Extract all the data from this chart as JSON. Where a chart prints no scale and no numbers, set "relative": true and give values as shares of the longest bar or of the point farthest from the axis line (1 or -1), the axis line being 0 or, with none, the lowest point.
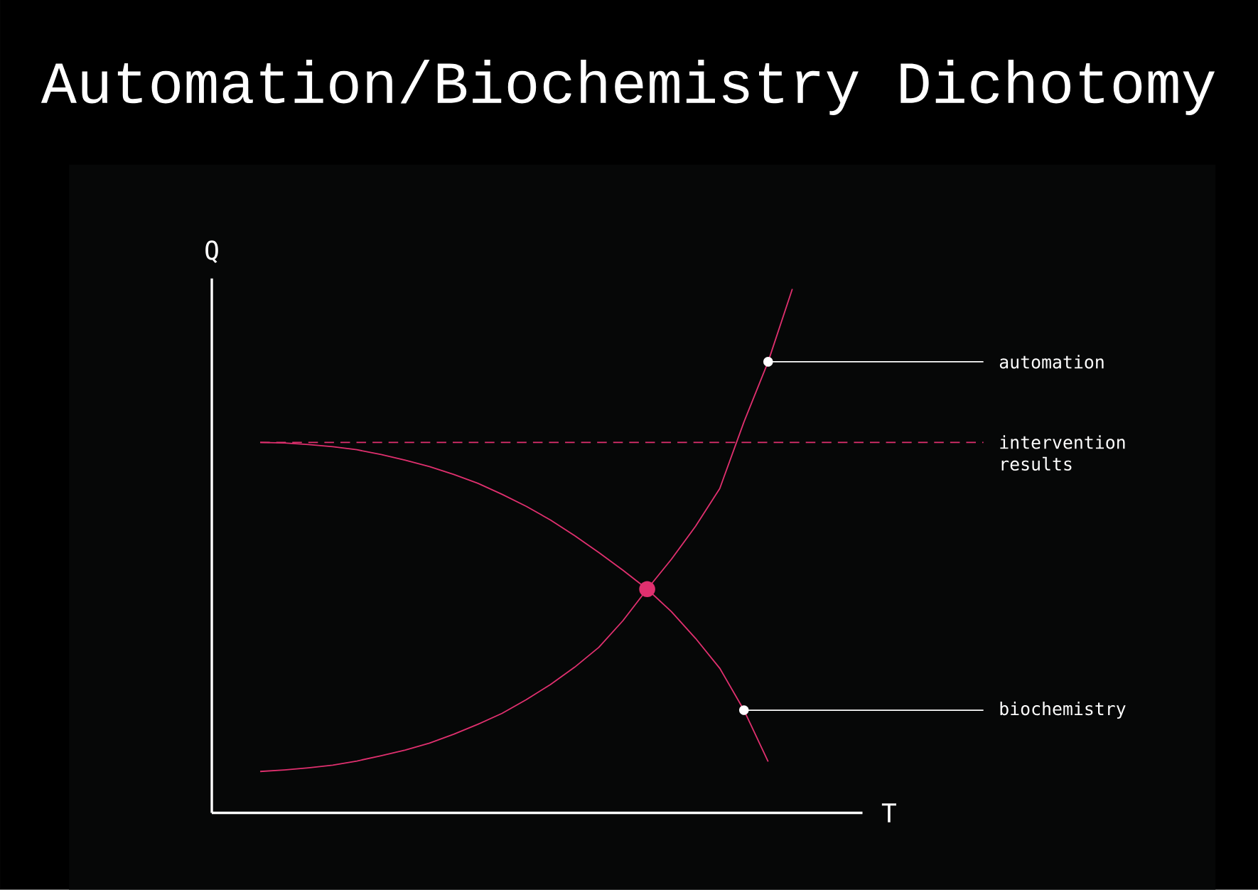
{
  "chart_data": {
    "type": "line",
    "title": "Automation/Biochemistry Dichotomy",
    "xlabel": "T",
    "ylabel": "Q",
    "relative": true,
    "categories": [
      null,
      null,
      null,
      null,
      null,
      null,
      null,
      null,
      null,
      null,
      null,
      null,
      null,
      null,
      null,
      null,
      null,
      null,
      null,
      null,
      null,
      null,
      null
    ],
    "marker": "none",
    "line_style": "solid",
    "series": [
      {
        "name": "automation",
        "color": "#e0306f",
        "values": [
          0.079,
          0.082,
          0.086,
          0.091,
          0.099,
          0.109,
          0.12,
          0.133,
          0.15,
          0.169,
          0.19,
          0.216,
          0.245,
          0.278,
          0.316,
          0.367,
          0.427,
          0.484,
          0.547,
          0.619,
          0.746,
          0.861,
          1.0
        ]
      },
      {
        "name": "biochemistry",
        "color": "#e0306f",
        "values": [
          0.707,
          0.706,
          0.703,
          0.699,
          0.693,
          0.684,
          0.673,
          0.661,
          0.646,
          0.629,
          0.608,
          0.585,
          0.559,
          0.529,
          0.497,
          0.463,
          0.427,
          0.384,
          0.333,
          0.276,
          0.196,
          0.098,
          null
        ]
      }
    ],
    "ref_lines": [
      {
        "axis": "y",
        "value": 0.707,
        "label": "intervention results",
        "color": "#e0306f",
        "line_style": "dashed"
      }
    ]
  }
}
